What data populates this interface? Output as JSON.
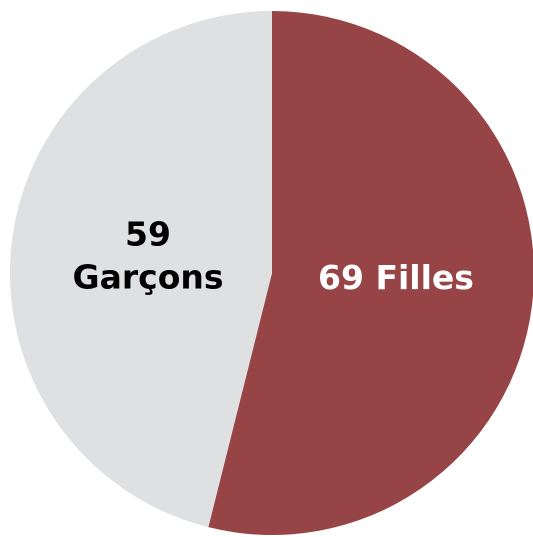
{
  "chart_data": {
    "type": "pie",
    "title": "",
    "start_angle_deg": 0,
    "direction": "clockwise",
    "slices": [
      {
        "value": 69,
        "label_lines": [
          "69 Filles"
        ],
        "color": "#964446",
        "label_color": "#ffffff"
      },
      {
        "value": 59,
        "label_lines": [
          "59",
          "Garçons"
        ],
        "color": "#dfe0e2",
        "label_color": "#000000"
      }
    ]
  }
}
